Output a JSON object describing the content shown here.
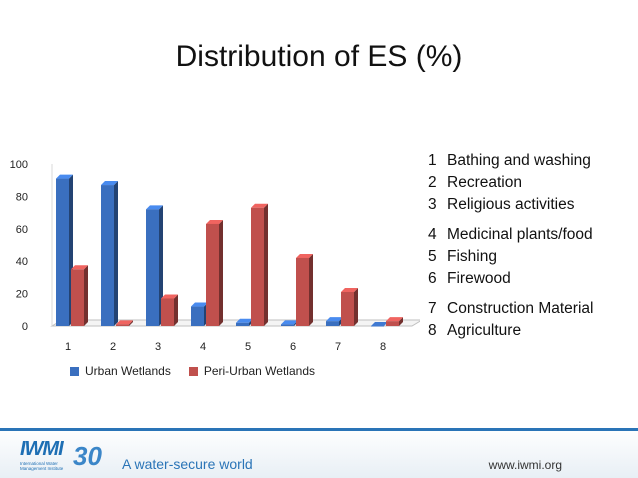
{
  "title": "Distribution of ES (%)",
  "chart_data": {
    "type": "bar",
    "categories": [
      "1",
      "2",
      "3",
      "4",
      "5",
      "6",
      "7",
      "8"
    ],
    "series": [
      {
        "name": "Urban Wetlands",
        "values": [
          91,
          87,
          72,
          12,
          2,
          1,
          3,
          0
        ],
        "color": "#3a6fbf"
      },
      {
        "name": "Peri-Urban Wetlands",
        "values": [
          35,
          1,
          17,
          63,
          73,
          42,
          21,
          3
        ],
        "color": "#c0504d"
      }
    ],
    "yticks": [
      "0",
      "20",
      "40",
      "60",
      "80",
      "100"
    ],
    "ylim": [
      0,
      100
    ],
    "legend_position": "bottom-left",
    "grid": false
  },
  "key": [
    {
      "num": "1",
      "label": "Bathing and washing"
    },
    {
      "num": "2",
      "label": "Recreation"
    },
    {
      "num": "3",
      "label": "Religious activities"
    },
    {
      "num": "4",
      "label": "Medicinal plants/food"
    },
    {
      "num": "5",
      "label": "Fishing"
    },
    {
      "num": "6",
      "label": "Firewood"
    },
    {
      "num": "7",
      "label": "Construction Material"
    },
    {
      "num": "8",
      "label": "Agriculture"
    }
  ],
  "footer": {
    "logo_text": "IWMI",
    "logo_sub": "International Water Management Institute",
    "logo_30": "30",
    "tagline": "A water-secure world",
    "website": "www.iwmi.org"
  }
}
